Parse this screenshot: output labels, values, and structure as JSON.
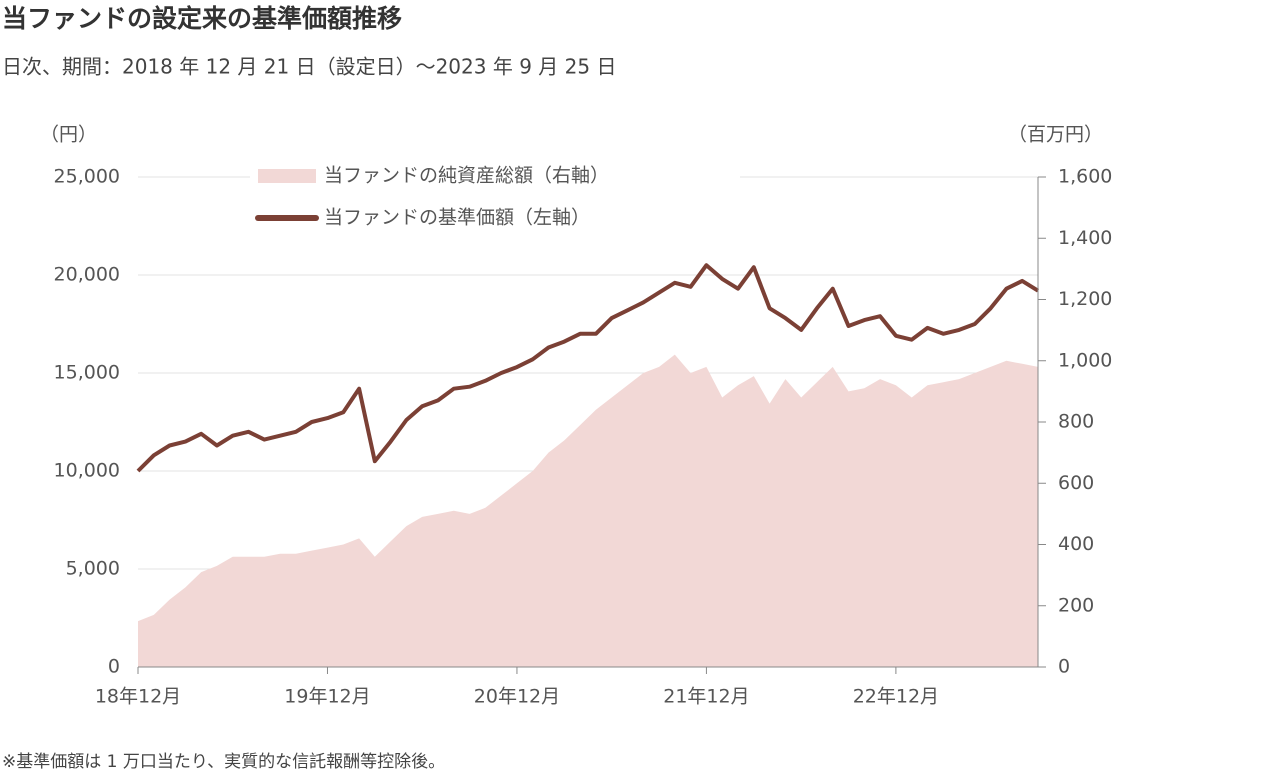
{
  "chart_data": {
    "type": "line",
    "title": "当ファンドの設定来の基準価額推移",
    "subtitle": "日次、期間：2018 年 12 月 21 日（設定日）～2023 年 9 月 25 日",
    "y_label": "（円）",
    "y2_label": "（百万円）",
    "footnote": "※基準価額は 1 万口当たり、実質的な信託報酬等控除後。",
    "categories": [
      "18年12月",
      null,
      null,
      null,
      null,
      null,
      null,
      null,
      null,
      null,
      null,
      null,
      "19年12月",
      null,
      null,
      null,
      null,
      null,
      null,
      null,
      null,
      null,
      null,
      null,
      "20年12月",
      null,
      null,
      null,
      null,
      null,
      null,
      null,
      null,
      null,
      null,
      null,
      "21年12月",
      null,
      null,
      null,
      null,
      null,
      null,
      null,
      null,
      null,
      null,
      null,
      "22年12月",
      null,
      null,
      null,
      null,
      null,
      null,
      null,
      null,
      null
    ],
    "series": [
      {
        "name": "当ファンドの純資産総額（右軸）",
        "type": "area",
        "axis": "y2",
        "color": "#f2d8d6",
        "values": [
          150,
          170,
          220,
          260,
          310,
          330,
          360,
          360,
          360,
          370,
          370,
          380,
          390,
          400,
          420,
          360,
          410,
          460,
          490,
          500,
          510,
          500,
          520,
          560,
          600,
          640,
          700,
          740,
          790,
          840,
          880,
          920,
          960,
          980,
          1020,
          960,
          980,
          880,
          920,
          950,
          860,
          940,
          880,
          930,
          980,
          900,
          910,
          940,
          920,
          880,
          920,
          930,
          940,
          960,
          980,
          1000,
          990,
          980
        ]
      },
      {
        "name": "当ファンドの基準価額（左軸）",
        "type": "line",
        "color": "#7b4035",
        "values": [
          10000,
          10800,
          11300,
          11500,
          11900,
          11300,
          11800,
          12000,
          11600,
          11800,
          12000,
          12500,
          12700,
          13000,
          14200,
          10500,
          11500,
          12600,
          13300,
          13600,
          14200,
          14300,
          14600,
          15000,
          15300,
          15700,
          16300,
          16600,
          17000,
          17000,
          17800,
          18200,
          18600,
          19100,
          19600,
          19400,
          20500,
          19800,
          19300,
          20400,
          18300,
          17800,
          17200,
          18300,
          19300,
          17400,
          17700,
          17900,
          16900,
          16700,
          17300,
          17000,
          17200,
          17500,
          18300,
          19300,
          19700,
          19200
        ]
      }
    ],
    "ylim": [
      0,
      25000
    ],
    "yticks": [
      0,
      {
        "value": 5000,
        "label": "5,000"
      },
      {
        "value": 10000,
        "label": "10,000"
      },
      {
        "value": 15000,
        "label": "15,000"
      },
      {
        "value": 20000,
        "label": "20,000"
      },
      {
        "value": 25000,
        "label": "25,000"
      }
    ],
    "y2lim": [
      0,
      1600
    ],
    "y2ticks": [
      0,
      200,
      400,
      600,
      800,
      {
        "value": 1000,
        "label": "1,000"
      },
      {
        "value": 1200,
        "label": "1,200"
      },
      {
        "value": 1400,
        "label": "1,400"
      },
      {
        "value": 1600,
        "label": "1,600"
      }
    ],
    "grid": true
  }
}
